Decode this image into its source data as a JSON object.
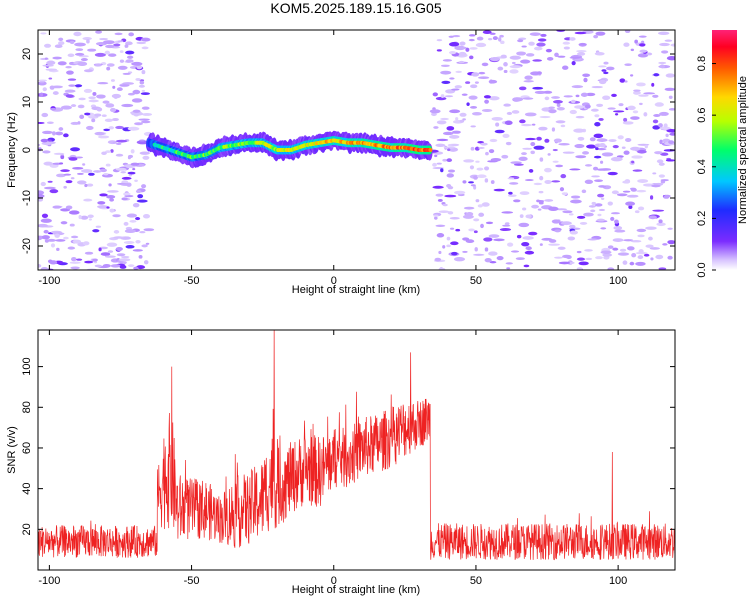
{
  "title": "KOM5.2025.189.15.16.G05",
  "chart_data": [
    {
      "type": "heatmap",
      "xlabel": "Height of straight line (km)",
      "ylabel": "Frequency (Hz)",
      "xlim": [
        -104,
        120
      ],
      "ylim": [
        -25,
        25
      ],
      "xticks": [
        -100,
        -50,
        0,
        50,
        100
      ],
      "yticks": [
        -20,
        -10,
        0,
        10,
        20
      ],
      "colorbar": {
        "label": "Normalized spectral amplitude",
        "range": [
          0,
          0.93
        ],
        "ticks": [
          0.0,
          0.2,
          0.4,
          0.6,
          0.8
        ],
        "colormap": "rainbow"
      },
      "signal_ridge": {
        "x": [
          -65,
          -60,
          -55,
          -50,
          -45,
          -40,
          -35,
          -30,
          -25,
          -20,
          -15,
          -10,
          -5,
          0,
          5,
          10,
          15,
          20,
          25,
          30,
          34
        ],
        "y": [
          1.5,
          0.5,
          -0.5,
          -1.5,
          -1.0,
          0.5,
          1.0,
          1.5,
          1.5,
          0.0,
          0.0,
          1.0,
          1.5,
          2.0,
          1.5,
          1.5,
          1.0,
          0.5,
          0.5,
          0.0,
          0.0
        ]
      },
      "signal_x_range": [
        -65,
        34
      ]
    },
    {
      "type": "line",
      "xlabel": "Height of straight line (km)",
      "ylabel": "SNR (v/v)",
      "xlim": [
        -104,
        120
      ],
      "ylim": [
        0,
        118
      ],
      "xticks": [
        -100,
        -50,
        0,
        50,
        100
      ],
      "yticks": [
        20,
        40,
        60,
        80,
        100
      ],
      "series": [
        {
          "color": "#ee2222",
          "baseline_segments": [
            {
              "x_range": [
                -104,
                -62
              ],
              "mean": 14,
              "spread": 8
            },
            {
              "x_range": [
                34,
                120
              ],
              "mean": 14,
              "spread": 9
            }
          ],
          "signal_envelope": {
            "x": [
              -62,
              -60,
              -57,
              -55,
              -50,
              -45,
              -40,
              -35,
              -30,
              -25,
              -22,
              -20,
              -15,
              -10,
              -5,
              0,
              5,
              10,
              15,
              20,
              25,
              30,
              34
            ],
            "mean": [
              35,
              45,
              50,
              30,
              30,
              30,
              25,
              28,
              30,
              35,
              45,
              40,
              45,
              50,
              48,
              55,
              55,
              60,
              62,
              65,
              70,
              72,
              75
            ],
            "spread": [
              15,
              25,
              30,
              18,
              15,
              15,
              12,
              18,
              18,
              20,
              25,
              20,
              18,
              18,
              18,
              15,
              15,
              15,
              15,
              15,
              15,
              12,
              12
            ]
          },
          "peaks": [
            {
              "x": -57,
              "y": 100
            },
            {
              "x": -21,
              "y": 118
            },
            {
              "x": 27,
              "y": 107
            },
            {
              "x": 98,
              "y": 58
            }
          ]
        }
      ]
    }
  ]
}
